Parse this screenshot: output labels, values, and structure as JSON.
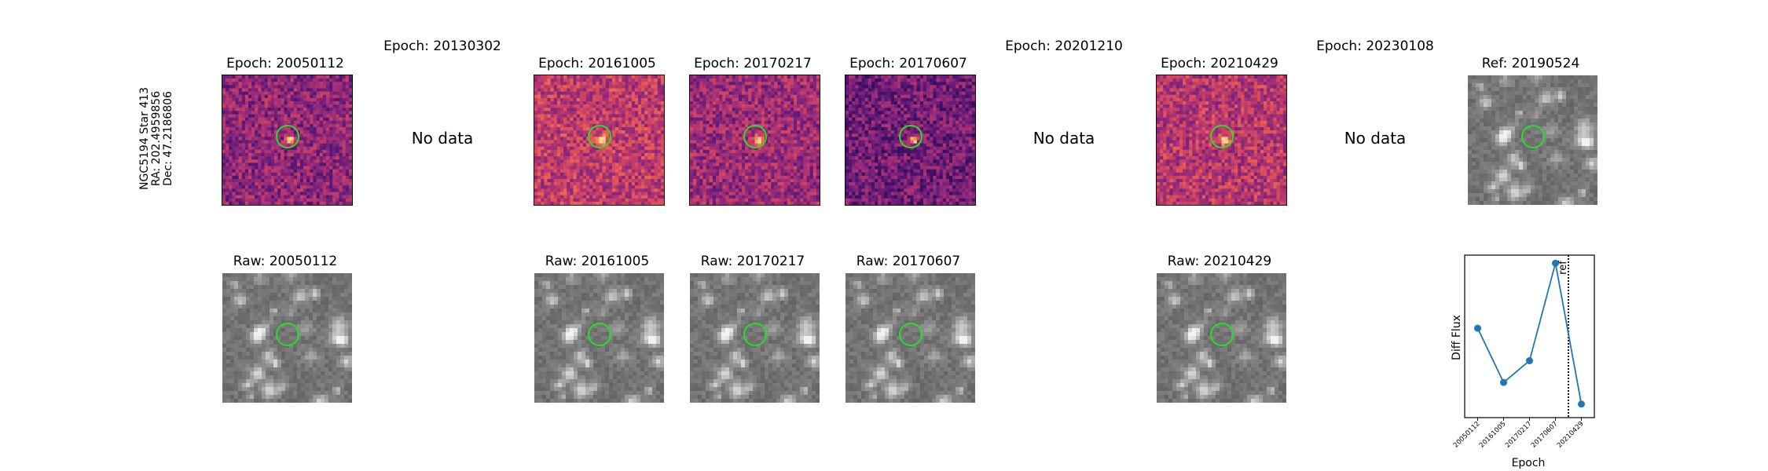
{
  "star": {
    "line1": "NGC5194 Star 413",
    "line2": "RA: 202.4959856",
    "line3": "Dec: 47.2186806"
  },
  "columns": [
    {
      "epoch_title": "Epoch: 20050112",
      "raw_title": "Raw: 20050112",
      "has_data": true
    },
    {
      "epoch_title": "Epoch: 20130302",
      "nodata": "No data",
      "has_data": false
    },
    {
      "epoch_title": "Epoch: 20161005",
      "raw_title": "Raw: 20161005",
      "has_data": true
    },
    {
      "epoch_title": "Epoch: 20170217",
      "raw_title": "Raw: 20170217",
      "has_data": true
    },
    {
      "epoch_title": "Epoch: 20170607",
      "raw_title": "Raw: 20170607",
      "has_data": true
    },
    {
      "epoch_title": "Epoch: 20201210",
      "nodata": "No data",
      "has_data": false
    },
    {
      "epoch_title": "Epoch: 20210429",
      "raw_title": "Raw: 20210429",
      "has_data": true
    },
    {
      "epoch_title": "Epoch: 20230108",
      "nodata": "No data",
      "has_data": false
    }
  ],
  "reference": {
    "title": "Ref: 20190524"
  },
  "colors": {
    "aperture": "#2bdc2b",
    "series": "#1f77b4"
  },
  "chart_data": {
    "type": "line",
    "xlabel": "Epoch",
    "ylabel": "Diff Flux",
    "x": [
      "20050112",
      "20161005",
      "20170217",
      "20170607",
      "20210429"
    ],
    "series": [
      {
        "values": [
          0.55,
          -0.45,
          -0.05,
          1.75,
          -0.85
        ]
      }
    ],
    "ylim": [
      -1.1,
      1.9
    ],
    "reference_line": {
      "position_between": [
        "20170607",
        "20210429"
      ],
      "fraction": 0.5,
      "label": "ref",
      "style": "dotted"
    },
    "grid": false
  }
}
